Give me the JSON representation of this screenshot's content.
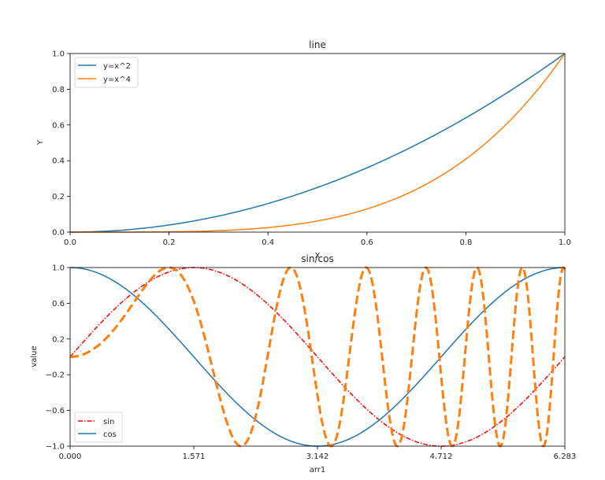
{
  "chart_data": [
    {
      "type": "line",
      "title": "line",
      "xlabel": "X",
      "ylabel": "Y",
      "xlim": [
        0.0,
        1.0
      ],
      "ylim": [
        0.0,
        1.0
      ],
      "xticks": [
        "0.0",
        "0.2",
        "0.4",
        "0.6",
        "0.8",
        "1.0"
      ],
      "yticks": [
        "0.0",
        "0.2",
        "0.4",
        "0.6",
        "0.8",
        "1.0"
      ],
      "legend_position": "upper left",
      "grid": false,
      "series": [
        {
          "name": "y=x^2",
          "color": "#1f77b4",
          "style": "solid",
          "function": "x^2",
          "x": [
            0,
            0.1,
            0.2,
            0.3,
            0.4,
            0.5,
            0.6,
            0.7,
            0.8,
            0.9,
            1.0
          ],
          "values": [
            0,
            0.01,
            0.04,
            0.09,
            0.16,
            0.25,
            0.36,
            0.49,
            0.64,
            0.81,
            1.0
          ]
        },
        {
          "name": "y=x^4",
          "color": "#ff7f0e",
          "style": "solid",
          "function": "x^4",
          "x": [
            0,
            0.1,
            0.2,
            0.3,
            0.4,
            0.5,
            0.6,
            0.7,
            0.8,
            0.9,
            1.0
          ],
          "values": [
            0,
            0.0001,
            0.0016,
            0.0081,
            0.0256,
            0.0625,
            0.1296,
            0.2401,
            0.4096,
            0.6561,
            1.0
          ]
        }
      ]
    },
    {
      "type": "line",
      "title": "sin/cos",
      "xlabel": "arr1",
      "ylabel": "value",
      "xlim": [
        0.0,
        6.283
      ],
      "ylim": [
        -1.0,
        1.0
      ],
      "xticks": [
        "0.000",
        "1.571",
        "3.142",
        "4.712",
        "6.283"
      ],
      "yticks": [
        "−1.0",
        "−0.6",
        "−0.2",
        "0.2",
        "0.6",
        "1.0"
      ],
      "legend_position": "lower left",
      "grid": false,
      "series": [
        {
          "name": "sin",
          "color": "#ff0000",
          "style": "dashdot",
          "function": "sin(x)",
          "in_legend": true
        },
        {
          "name": "cos",
          "color": "#1f77b4",
          "style": "solid",
          "function": "cos(x)",
          "in_legend": true
        },
        {
          "name": "",
          "color": "#ff7f0e",
          "style": "dashed-thick",
          "function": "sin(x^2)",
          "in_legend": false
        }
      ]
    }
  ]
}
